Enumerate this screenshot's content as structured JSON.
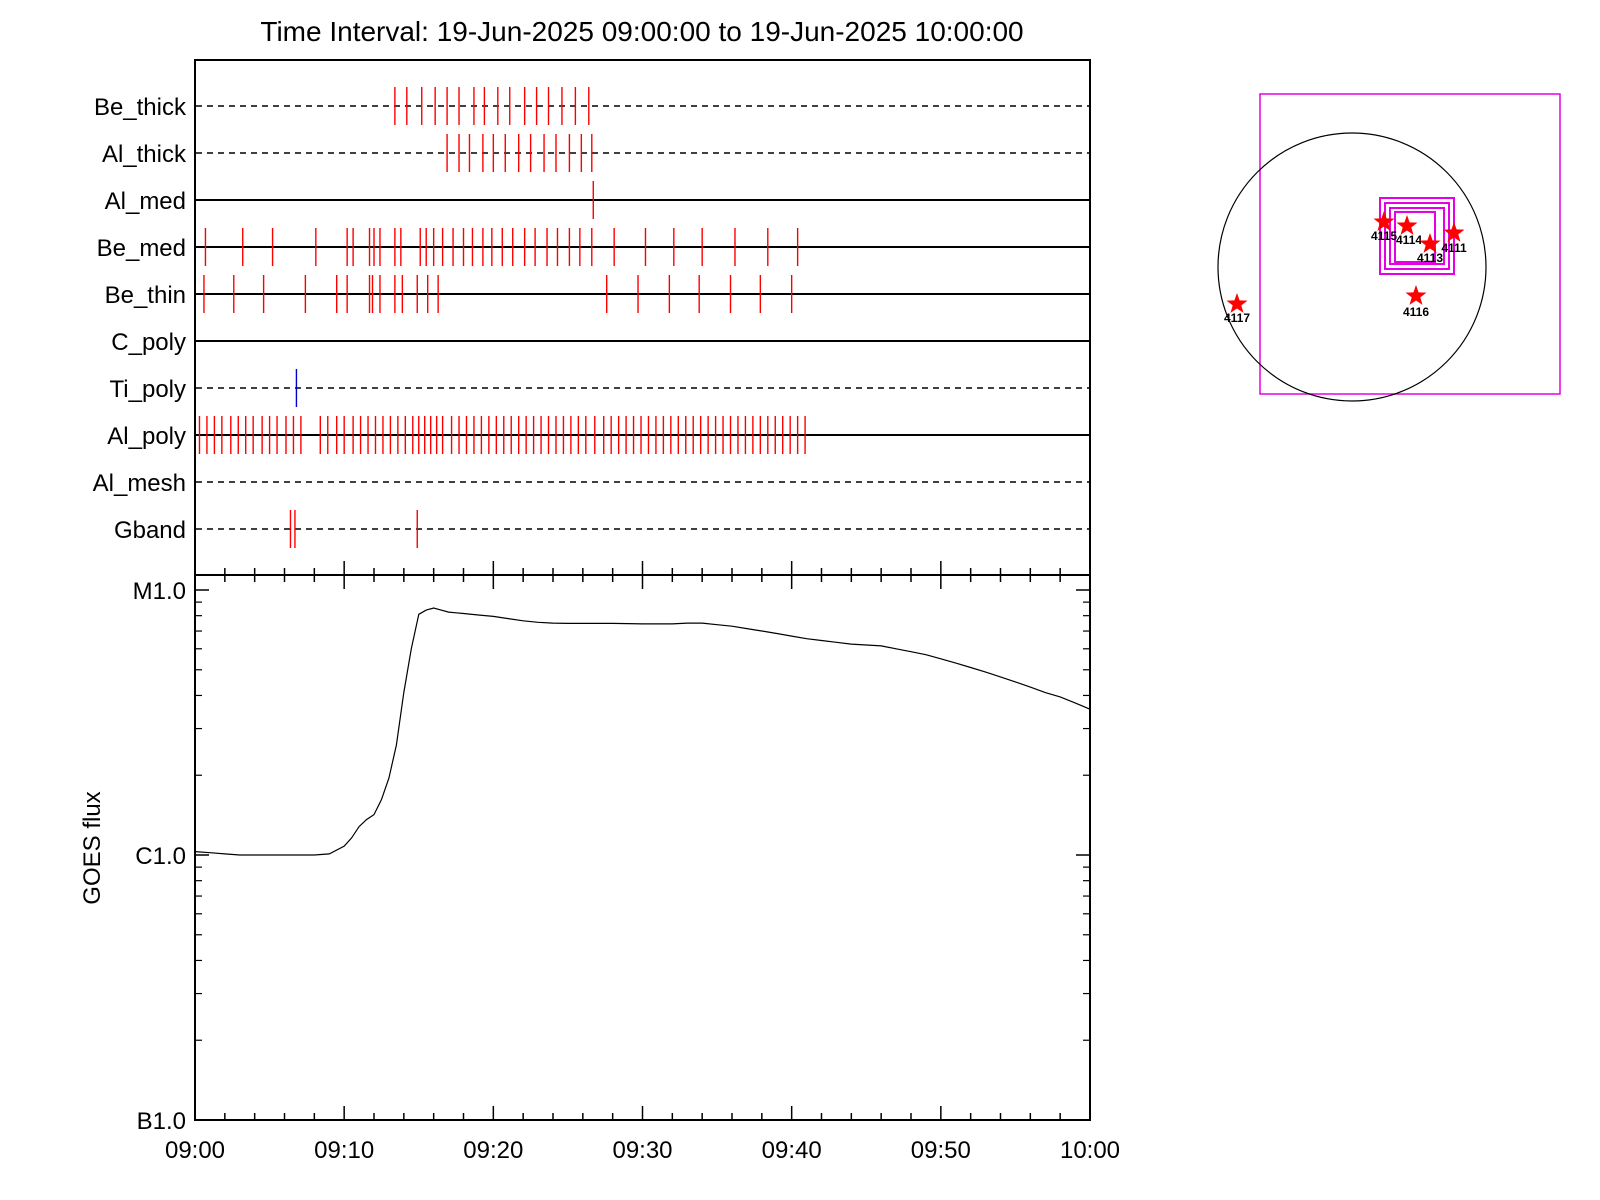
{
  "title": "Time Interval: 19-Jun-2025 09:00:00 to 19-Jun-2025 10:00:00",
  "colors": {
    "event_red": "#ff0000",
    "event_blue": "#0000cc",
    "fov_magenta": "#e600e6",
    "star_red": "#ff0000"
  },
  "chart_data": [
    {
      "type": "scatter",
      "name": "filter-timeline",
      "x_unit": "minutes after 09:00",
      "rows": [
        {
          "label": "Be_thick",
          "line": "dashed",
          "events": [
            13.4,
            14.2,
            15.2,
            16.1,
            16.9,
            17.7,
            18.7,
            19.4,
            20.3,
            21.1,
            22.1,
            22.9,
            23.7,
            24.6,
            25.5,
            26.4
          ]
        },
        {
          "label": "Al_thick",
          "line": "dashed",
          "events": [
            16.9,
            17.7,
            18.4,
            19.3,
            20.0,
            20.8,
            21.7,
            22.5,
            23.4,
            24.2,
            25.1,
            25.9,
            26.6
          ]
        },
        {
          "label": "Al_med",
          "line": "solid",
          "events": [
            26.7
          ]
        },
        {
          "label": "Be_med",
          "line": "solid",
          "events": [
            0.7,
            3.2,
            5.2,
            8.1,
            10.2,
            10.6,
            11.7,
            12.0,
            12.4,
            13.4,
            13.8,
            15.1,
            15.5,
            16.0,
            16.6,
            17.3,
            18.0,
            18.6,
            19.3,
            19.9,
            20.6,
            21.3,
            22.1,
            22.8,
            23.6,
            24.3,
            25.1,
            25.8,
            26.6,
            28.1,
            30.2,
            32.1,
            34.0,
            36.2,
            38.4,
            40.4
          ]
        },
        {
          "label": "Be_thin",
          "line": "solid",
          "events": [
            0.6,
            2.6,
            4.6,
            7.4,
            9.5,
            10.2,
            11.7,
            11.9,
            12.4,
            13.4,
            13.9,
            14.9,
            15.6,
            16.3,
            27.6,
            29.7,
            31.8,
            33.8,
            35.9,
            37.9,
            40.0
          ]
        },
        {
          "label": "C_poly",
          "line": "solid",
          "events": []
        },
        {
          "label": "Ti_poly",
          "line": "dashed",
          "events": [
            6.8
          ]
        },
        {
          "label": "Al_poly",
          "line": "solid",
          "events": [
            0.3,
            0.8,
            1.3,
            1.8,
            2.4,
            2.9,
            3.4,
            3.9,
            4.5,
            5.0,
            5.5,
            6.1,
            6.6,
            7.1,
            8.4,
            8.9,
            9.5,
            10.0,
            10.6,
            11.1,
            11.6,
            12.1,
            12.6,
            13.1,
            13.6,
            14.1,
            14.6,
            15.0,
            15.4,
            15.8,
            16.2,
            16.6,
            17.2,
            17.7,
            18.2,
            18.7,
            19.2,
            19.7,
            20.2,
            20.7,
            21.2,
            21.7,
            22.2,
            22.7,
            23.2,
            23.7,
            24.2,
            24.7,
            25.2,
            25.7,
            26.2,
            26.8,
            27.4,
            27.9,
            28.4,
            28.9,
            29.4,
            29.9,
            30.4,
            30.9,
            31.4,
            31.9,
            32.4,
            32.9,
            33.4,
            33.9,
            34.4,
            34.9,
            35.4,
            35.9,
            36.4,
            36.9,
            37.4,
            37.9,
            38.4,
            38.9,
            39.4,
            39.9,
            40.4,
            40.9
          ]
        },
        {
          "label": "Al_mesh",
          "line": "dashed",
          "events": []
        },
        {
          "label": "Gband",
          "line": "dashed",
          "events": [
            6.4,
            6.7,
            14.9
          ]
        }
      ]
    },
    {
      "type": "line",
      "name": "goes-flux",
      "ylabel": "GOES flux",
      "yscale": "log",
      "ylim_classes": [
        "B1.0",
        "M1.0"
      ],
      "yticks": [
        {
          "label": "M1.0",
          "value": 1e-05
        },
        {
          "label": "C1.0",
          "value": 1e-06
        },
        {
          "label": "B1.0",
          "value": 1e-07
        }
      ],
      "xticks": [
        "09:00",
        "09:10",
        "09:20",
        "09:30",
        "09:40",
        "09:50",
        "10:00"
      ],
      "x_minutes": [
        0,
        1,
        2,
        3,
        4,
        5,
        6,
        7,
        8,
        9,
        10,
        10.5,
        11,
        11.5,
        12,
        12.5,
        13,
        13.5,
        14,
        14.5,
        15,
        15.5,
        16,
        16.5,
        17,
        17.5,
        18,
        19,
        20,
        21,
        22,
        23,
        24,
        25,
        26,
        27,
        28,
        29,
        30,
        31,
        32,
        33,
        34,
        35,
        36,
        37,
        38,
        39,
        40,
        41,
        42,
        43,
        44,
        45,
        46,
        47,
        48,
        49,
        50,
        51,
        52,
        53,
        54,
        55,
        56,
        57,
        58,
        59,
        60
      ],
      "y_flux": [
        1.03e-06,
        1.02e-06,
        1.01e-06,
        1e-06,
        1e-06,
        1e-06,
        1e-06,
        1e-06,
        1e-06,
        1.01e-06,
        1.08e-06,
        1.16e-06,
        1.28e-06,
        1.36e-06,
        1.42e-06,
        1.62e-06,
        1.95e-06,
        2.6e-06,
        4.1e-06,
        6e-06,
        8.1e-06,
        8.4e-06,
        8.55e-06,
        8.4e-06,
        8.25e-06,
        8.2e-06,
        8.15e-06,
        8.05e-06,
        7.95e-06,
        7.8e-06,
        7.65e-06,
        7.55e-06,
        7.5e-06,
        7.48e-06,
        7.48e-06,
        7.48e-06,
        7.48e-06,
        7.47e-06,
        7.45e-06,
        7.45e-06,
        7.45e-06,
        7.5e-06,
        7.5e-06,
        7.4e-06,
        7.3e-06,
        7.15e-06,
        7e-06,
        6.85e-06,
        6.7e-06,
        6.55e-06,
        6.45e-06,
        6.35e-06,
        6.25e-06,
        6.2e-06,
        6.15e-06,
        6e-06,
        5.85e-06,
        5.7e-06,
        5.5e-06,
        5.3e-06,
        5.1e-06,
        4.9e-06,
        4.7e-06,
        4.5e-06,
        4.3e-06,
        4.1e-06,
        3.95e-06,
        3.75e-06,
        3.55e-06
      ]
    }
  ],
  "context_map": {
    "flare_labels": [
      "4117",
      "4115",
      "4114",
      "4113",
      "4111",
      "4116"
    ]
  }
}
